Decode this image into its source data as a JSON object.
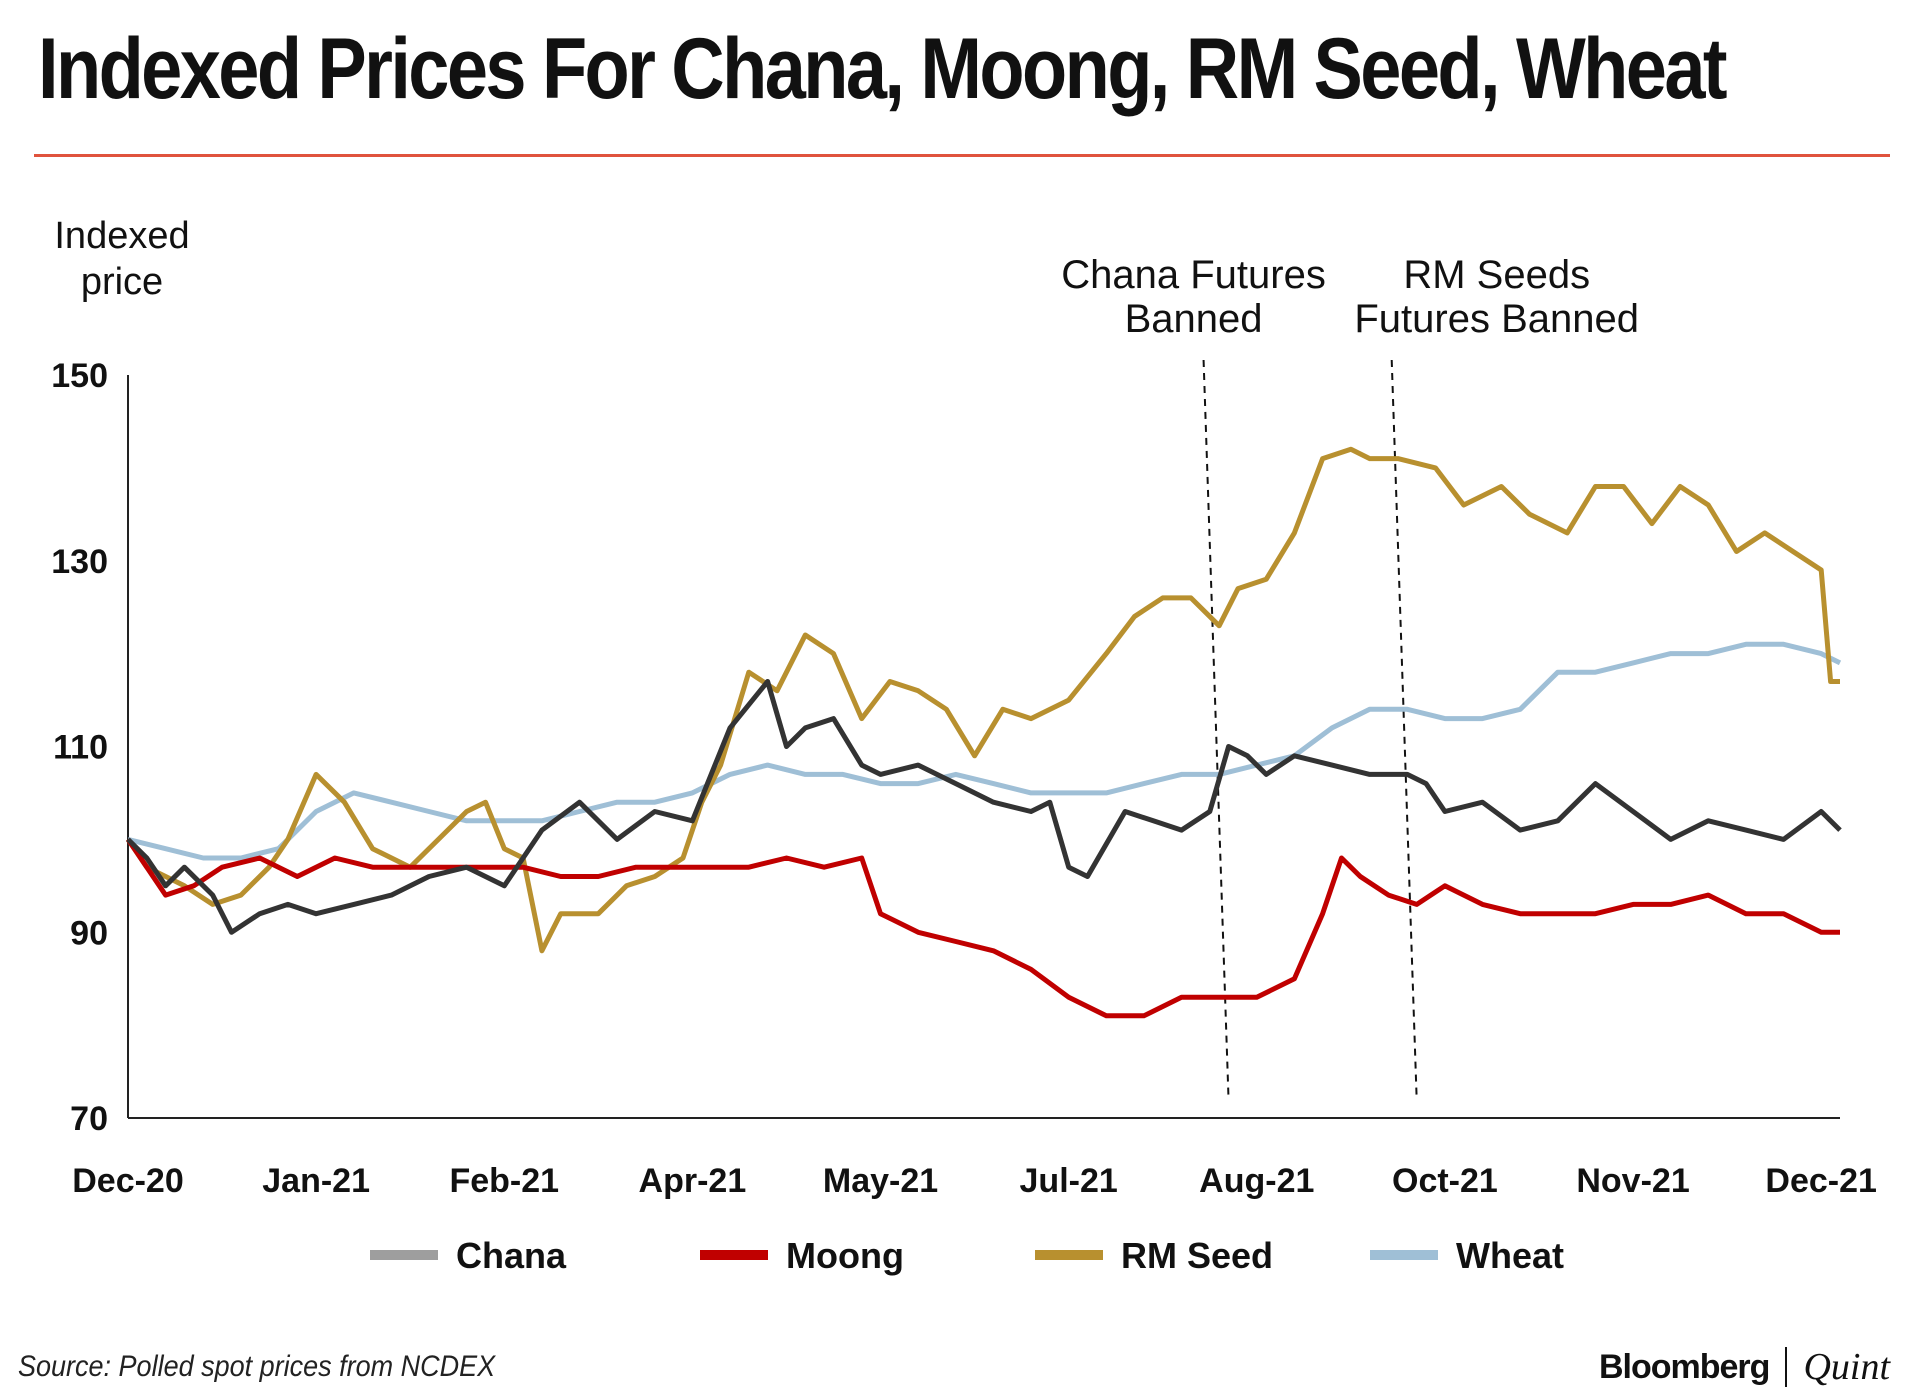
{
  "title": "Indexed Prices For Chana, Moong, RM Seed, Wheat",
  "source": "Source: Polled spot prices from NCDEX",
  "brand": {
    "name": "Bloomberg",
    "partner": "Quint"
  },
  "colors": {
    "accent_rule": "#e0533d",
    "chana": "#333333",
    "chana_legend": "#9e9e9e",
    "moong": "#c00000",
    "rm_seed": "#b8902f",
    "wheat": "#9fbfd6"
  },
  "chart_data": {
    "type": "line",
    "ylabel": "Indexed price",
    "ylim": [
      70,
      150
    ],
    "yticks": [
      70,
      90,
      110,
      130,
      150
    ],
    "x_months": [
      "Dec-20",
      "Jan-21",
      "Feb-21",
      "Apr-21",
      "May-21",
      "Jul-21",
      "Aug-21",
      "Oct-21",
      "Nov-21",
      "Dec-21"
    ],
    "x_range": [
      0,
      9.1
    ],
    "annotations": [
      {
        "text_line1": "Chana Futures",
        "text_line2": "Banned",
        "x": 5.85
      },
      {
        "text_line1": "RM Seeds",
        "text_line2": "Futures Banned",
        "x": 6.85
      }
    ],
    "series": [
      {
        "name": "Chana",
        "color": "#333333",
        "x": [
          0,
          0.1,
          0.2,
          0.3,
          0.45,
          0.55,
          0.7,
          0.85,
          1.0,
          1.2,
          1.4,
          1.6,
          1.8,
          2.0,
          2.2,
          2.4,
          2.6,
          2.8,
          3.0,
          3.2,
          3.4,
          3.5,
          3.6,
          3.75,
          3.9,
          4.0,
          4.2,
          4.4,
          4.6,
          4.8,
          4.9,
          5.0,
          5.1,
          5.3,
          5.45,
          5.6,
          5.75,
          5.85,
          5.95,
          6.05,
          6.2,
          6.4,
          6.6,
          6.8,
          6.9,
          7.0,
          7.2,
          7.4,
          7.6,
          7.8,
          8.0,
          8.2,
          8.4,
          8.6,
          8.8,
          9.0,
          9.1
        ],
        "values": [
          100,
          98,
          95,
          97,
          94,
          90,
          92,
          93,
          92,
          93,
          94,
          96,
          97,
          95,
          101,
          104,
          100,
          103,
          102,
          112,
          117,
          110,
          112,
          113,
          108,
          107,
          108,
          106,
          104,
          103,
          104,
          97,
          96,
          103,
          102,
          101,
          103,
          110,
          109,
          107,
          109,
          108,
          107,
          107,
          106,
          103,
          104,
          101,
          102,
          106,
          103,
          100,
          102,
          101,
          100,
          103,
          101
        ]
      },
      {
        "name": "Moong",
        "color": "#c00000",
        "x": [
          0,
          0.1,
          0.2,
          0.35,
          0.5,
          0.7,
          0.9,
          1.1,
          1.3,
          1.5,
          1.7,
          1.9,
          2.1,
          2.3,
          2.5,
          2.7,
          2.9,
          3.1,
          3.3,
          3.5,
          3.7,
          3.9,
          4.0,
          4.2,
          4.4,
          4.6,
          4.8,
          5.0,
          5.2,
          5.4,
          5.6,
          5.8,
          6.0,
          6.2,
          6.35,
          6.45,
          6.55,
          6.7,
          6.85,
          7.0,
          7.2,
          7.4,
          7.6,
          7.8,
          8.0,
          8.2,
          8.4,
          8.6,
          8.8,
          9.0,
          9.1
        ],
        "values": [
          100,
          97,
          94,
          95,
          97,
          98,
          96,
          98,
          97,
          97,
          97,
          97,
          97,
          96,
          96,
          97,
          97,
          97,
          97,
          98,
          97,
          98,
          92,
          90,
          89,
          88,
          86,
          83,
          81,
          81,
          83,
          83,
          83,
          85,
          92,
          98,
          96,
          94,
          93,
          95,
          93,
          92,
          92,
          92,
          93,
          93,
          94,
          92,
          92,
          90,
          90
        ]
      },
      {
        "name": "RM Seed",
        "color": "#b8902f",
        "x": [
          0,
          0.1,
          0.2,
          0.3,
          0.45,
          0.6,
          0.75,
          0.85,
          1.0,
          1.15,
          1.3,
          1.5,
          1.65,
          1.8,
          1.9,
          2.0,
          2.1,
          2.2,
          2.3,
          2.5,
          2.65,
          2.8,
          2.95,
          3.05,
          3.15,
          3.3,
          3.45,
          3.6,
          3.75,
          3.9,
          4.05,
          4.2,
          4.35,
          4.5,
          4.65,
          4.8,
          5.0,
          5.2,
          5.35,
          5.5,
          5.65,
          5.8,
          5.9,
          6.05,
          6.2,
          6.35,
          6.5,
          6.6,
          6.75,
          6.95,
          7.1,
          7.3,
          7.45,
          7.65,
          7.8,
          7.95,
          8.1,
          8.25,
          8.4,
          8.55,
          8.7,
          8.85,
          9.0,
          9.05,
          9.1
        ],
        "values": [
          100,
          97,
          96,
          95,
          93,
          94,
          97,
          100,
          107,
          104,
          99,
          97,
          100,
          103,
          104,
          99,
          98,
          88,
          92,
          92,
          95,
          96,
          98,
          104,
          108,
          118,
          116,
          122,
          120,
          113,
          117,
          116,
          114,
          109,
          114,
          113,
          115,
          120,
          124,
          126,
          126,
          123,
          127,
          128,
          133,
          141,
          142,
          141,
          141,
          140,
          136,
          138,
          135,
          133,
          138,
          138,
          134,
          138,
          136,
          131,
          133,
          131,
          129,
          117,
          117
        ]
      },
      {
        "name": "Wheat",
        "color": "#9fbfd6",
        "x": [
          0,
          0.2,
          0.4,
          0.6,
          0.8,
          1.0,
          1.2,
          1.4,
          1.6,
          1.8,
          2.0,
          2.2,
          2.4,
          2.6,
          2.8,
          3.0,
          3.2,
          3.4,
          3.6,
          3.8,
          4.0,
          4.2,
          4.4,
          4.6,
          4.8,
          5.0,
          5.2,
          5.4,
          5.6,
          5.8,
          6.0,
          6.2,
          6.4,
          6.6,
          6.8,
          7.0,
          7.2,
          7.4,
          7.6,
          7.8,
          8.0,
          8.2,
          8.4,
          8.6,
          8.8,
          9.0,
          9.1
        ],
        "values": [
          100,
          99,
          98,
          98,
          99,
          103,
          105,
          104,
          103,
          102,
          102,
          102,
          103,
          104,
          104,
          105,
          107,
          108,
          107,
          107,
          106,
          106,
          107,
          106,
          105,
          105,
          105,
          106,
          107,
          107,
          108,
          109,
          112,
          114,
          114,
          113,
          113,
          114,
          118,
          118,
          119,
          120,
          120,
          121,
          121,
          120,
          119
        ]
      }
    ]
  }
}
